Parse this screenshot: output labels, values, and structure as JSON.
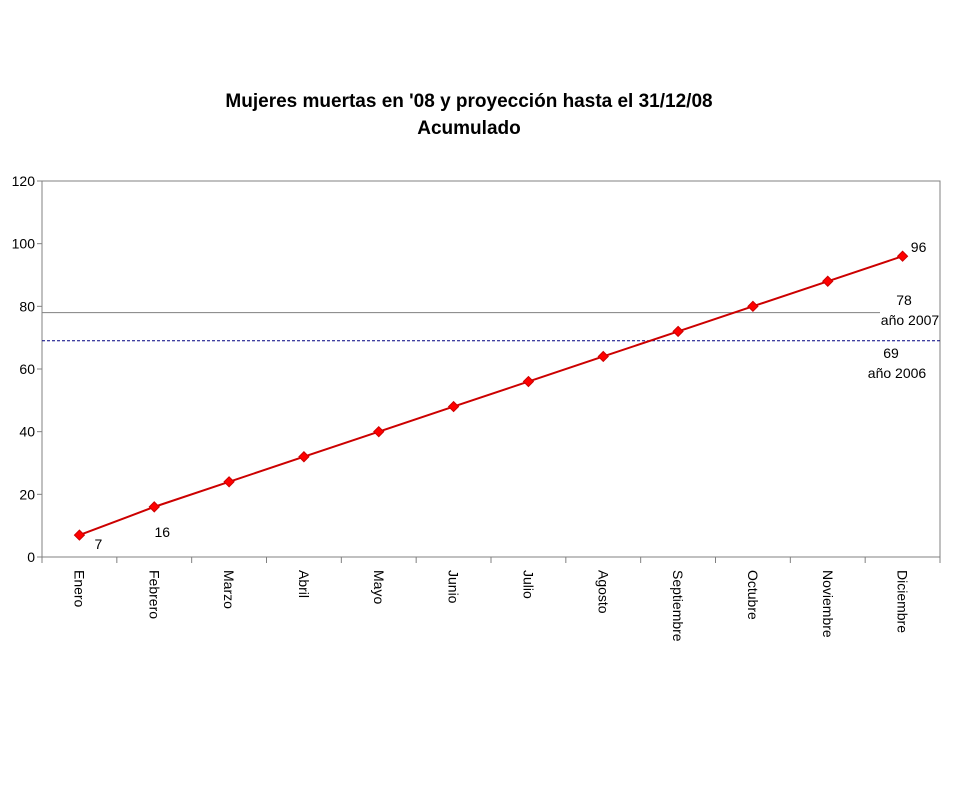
{
  "chart_data": {
    "type": "line",
    "title": "Mujeres muertas en '08 y proyección hasta el 31/12/08",
    "subtitle": "Acumulado",
    "xlabel": "",
    "ylabel": "",
    "categories": [
      "Enero",
      "Febrero",
      "Marzo",
      "Abril",
      "Mayo",
      "Junio",
      "Julio",
      "Agosto",
      "Septiembre",
      "Octubre",
      "Noviembre",
      "Diciembre"
    ],
    "series": [
      {
        "values": [
          7,
          16,
          24,
          32,
          40,
          48,
          56,
          64,
          72,
          80,
          88,
          96
        ],
        "color": "#cc0000",
        "marker": "diamond"
      }
    ],
    "point_labels": [
      {
        "index": 0,
        "text": "7"
      },
      {
        "index": 1,
        "text": "16"
      },
      {
        "index": 11,
        "text": "96"
      }
    ],
    "reference_lines": [
      {
        "value": 78,
        "value_label": "78",
        "label": "año 2007",
        "style": "solid",
        "color": "#808080"
      },
      {
        "value": 69,
        "value_label": "69",
        "label": "año 2006",
        "style": "dashed",
        "color": "#000080"
      }
    ],
    "ylim": [
      0,
      120
    ],
    "yticks": [
      0,
      20,
      40,
      60,
      80,
      100,
      120
    ],
    "grid": false,
    "legend": "none"
  }
}
